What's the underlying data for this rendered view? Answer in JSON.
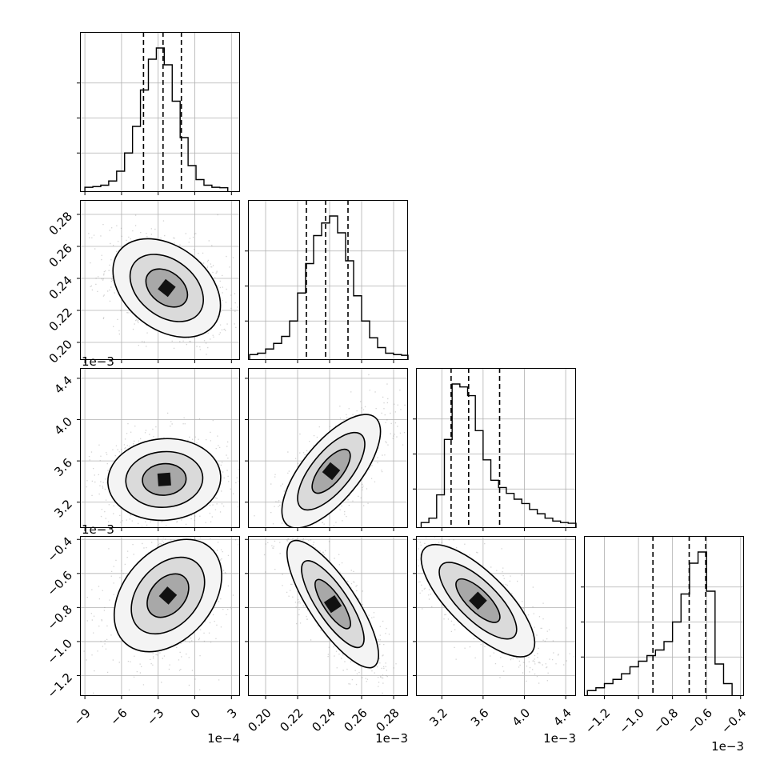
{
  "chart_data": {
    "type": "corner",
    "grid": true,
    "colors": {
      "line": "#000000",
      "grid": "#b0b0b0",
      "scatter": "#7f7f7f"
    },
    "params": [
      {
        "ticks": [
          -9,
          -6,
          -3,
          0,
          3
        ],
        "tick_labels": [
          "−9",
          "−6",
          "−3",
          "0",
          "3"
        ],
        "range": [
          -9.4,
          3.7
        ],
        "offset_label": "1e−4"
      },
      {
        "ticks": [
          0.2,
          0.22,
          0.24,
          0.26,
          0.28
        ],
        "tick_labels": [
          "0.20",
          "0.22",
          "0.24",
          "0.26",
          "0.28"
        ],
        "range": [
          0.189,
          0.289
        ],
        "offset_label": "1e−3"
      },
      {
        "ticks": [
          3.2,
          3.6,
          4.0,
          4.4
        ],
        "tick_labels": [
          "3.2",
          "3.6",
          "4.0",
          "4.4"
        ],
        "range": [
          2.95,
          4.5
        ],
        "offset_label": "1e−3"
      },
      {
        "ticks": [
          -1.2,
          -1.0,
          -0.8,
          -0.6,
          -0.4
        ],
        "tick_labels": [
          "−1.2",
          "−1.0",
          "−0.8",
          "−0.6",
          "−0.4"
        ],
        "range": [
          -1.32,
          -0.38
        ],
        "offset_label": "1e−3"
      }
    ],
    "histograms": [
      {
        "param": 0,
        "quantiles": [
          -4.2,
          -2.6,
          -1.1
        ],
        "edges": [
          -9.0,
          -8.35,
          -7.7,
          -7.05,
          -6.4,
          -5.75,
          -5.1,
          -4.45,
          -3.8,
          -3.15,
          -2.5,
          -1.85,
          -1.2,
          -0.55,
          0.1,
          0.75,
          1.4,
          2.05,
          2.7
        ],
        "counts": [
          0.005,
          0.01,
          0.02,
          0.05,
          0.12,
          0.25,
          0.44,
          0.7,
          0.92,
          1.0,
          0.88,
          0.62,
          0.36,
          0.16,
          0.06,
          0.02,
          0.005,
          0.002
        ]
      },
      {
        "param": 1,
        "quantiles": [
          0.2255,
          0.2375,
          0.2515
        ],
        "edges": [
          0.19,
          0.195,
          0.2,
          0.205,
          0.21,
          0.215,
          0.22,
          0.225,
          0.23,
          0.235,
          0.24,
          0.245,
          0.25,
          0.255,
          0.26,
          0.265,
          0.27,
          0.275,
          0.28,
          0.285,
          0.289
        ],
        "counts": [
          0.01,
          0.02,
          0.05,
          0.09,
          0.14,
          0.25,
          0.45,
          0.66,
          0.86,
          0.95,
          1.0,
          0.88,
          0.68,
          0.43,
          0.25,
          0.13,
          0.06,
          0.02,
          0.01,
          0.005
        ]
      },
      {
        "param": 2,
        "quantiles": [
          3.29,
          3.46,
          3.76
        ],
        "edges": [
          3.0,
          3.075,
          3.15,
          3.225,
          3.3,
          3.375,
          3.45,
          3.525,
          3.6,
          3.675,
          3.75,
          3.825,
          3.9,
          3.975,
          4.05,
          4.125,
          4.2,
          4.275,
          4.35,
          4.425,
          4.5
        ],
        "counts": [
          0.01,
          0.04,
          0.2,
          0.58,
          0.96,
          0.94,
          0.88,
          0.64,
          0.44,
          0.3,
          0.25,
          0.21,
          0.17,
          0.14,
          0.1,
          0.07,
          0.04,
          0.02,
          0.01,
          0.005
        ]
      },
      {
        "param": 3,
        "quantiles": [
          -0.915,
          -0.702,
          -0.605
        ],
        "edges": [
          -1.3,
          -1.25,
          -1.2,
          -1.15,
          -1.1,
          -1.05,
          -1.0,
          -0.95,
          -0.9,
          -0.85,
          -0.8,
          -0.75,
          -0.7,
          -0.65,
          -0.6,
          -0.55,
          -0.5,
          -0.45
        ],
        "counts": [
          0.01,
          0.03,
          0.06,
          0.09,
          0.13,
          0.18,
          0.22,
          0.26,
          0.3,
          0.36,
          0.5,
          0.7,
          0.92,
          1.0,
          0.72,
          0.2,
          0.06
        ]
      }
    ],
    "pairs": [
      {
        "row": 1,
        "col": 0,
        "mean": [
          -2.3,
          0.234
        ],
        "sd": [
          2.0,
          0.014
        ],
        "corr": -0.35
      },
      {
        "row": 2,
        "col": 0,
        "mean": [
          -2.5,
          3.42
        ],
        "sd": [
          2.1,
          0.18
        ],
        "corr": 0.05
      },
      {
        "row": 2,
        "col": 1,
        "mean": [
          0.241,
          3.5
        ],
        "sd": [
          0.014,
          0.25
        ],
        "corr": 0.7
      },
      {
        "row": 3,
        "col": 0,
        "mean": [
          -2.2,
          -0.73
        ],
        "sd": [
          2.0,
          0.15
        ],
        "corr": 0.35
      },
      {
        "row": 3,
        "col": 1,
        "mean": [
          0.242,
          -0.78
        ],
        "sd": [
          0.013,
          0.17
        ],
        "corr": -0.8
      },
      {
        "row": 3,
        "col": 2,
        "mean": [
          3.55,
          -0.76
        ],
        "sd": [
          0.25,
          0.15
        ],
        "corr": -0.75
      }
    ]
  }
}
